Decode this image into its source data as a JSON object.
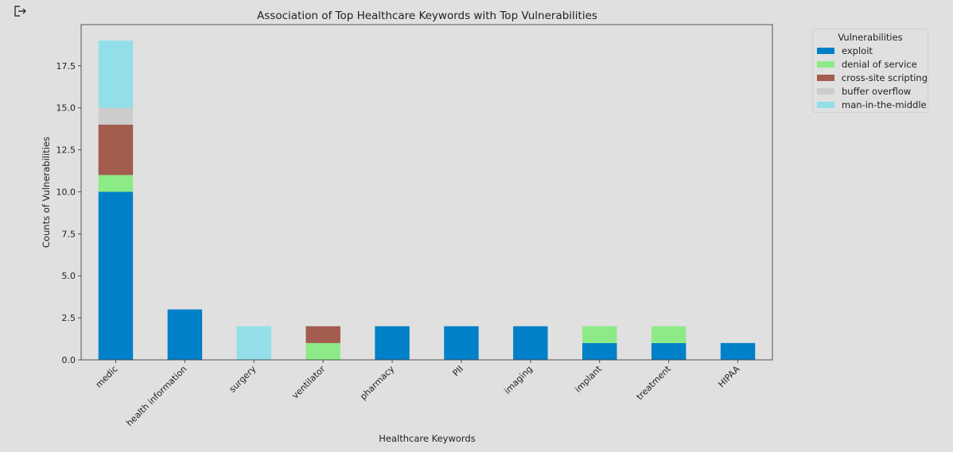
{
  "toolbar": {
    "export_icon": "export-icon"
  },
  "chart_data": {
    "type": "bar",
    "stacked": true,
    "title": "Association of Top Healthcare Keywords with Top Vulnerabilities",
    "xlabel": "Healthcare Keywords",
    "ylabel": "Counts of Vulnerabilities",
    "ylim": [
      0,
      19.95
    ],
    "yticks": [
      0.0,
      2.5,
      5.0,
      7.5,
      10.0,
      12.5,
      15.0,
      17.5
    ],
    "ytick_labels": [
      "0.0",
      "2.5",
      "5.0",
      "7.5",
      "10.0",
      "12.5",
      "15.0",
      "17.5"
    ],
    "grid": false,
    "legend_position": "outside-top-right",
    "legend_title": "Vulnerabilities",
    "categories": [
      "medic",
      "health information",
      "surgery",
      "ventilator",
      "pharmacy",
      "PII",
      "imaging",
      "implant",
      "treatment",
      "HIPAA"
    ],
    "series": [
      {
        "name": "exploit",
        "color": "#0080c8",
        "values": [
          10,
          3,
          0,
          0,
          2,
          2,
          2,
          1,
          1,
          1
        ]
      },
      {
        "name": "denial of service",
        "color": "#8deb87",
        "values": [
          1,
          0,
          0,
          1,
          0,
          0,
          0,
          1,
          1,
          0
        ]
      },
      {
        "name": "cross-site scripting",
        "color": "#a35c4e",
        "values": [
          3,
          0,
          0,
          1,
          0,
          0,
          0,
          0,
          0,
          0
        ]
      },
      {
        "name": "buffer overflow",
        "color": "#cccccc",
        "values": [
          1,
          0,
          0,
          0,
          0,
          0,
          0,
          0,
          0,
          0
        ]
      },
      {
        "name": "man-in-the-middle",
        "color": "#93dfe9",
        "values": [
          4,
          0,
          2,
          0,
          0,
          0,
          0,
          0,
          0,
          0
        ]
      }
    ]
  }
}
